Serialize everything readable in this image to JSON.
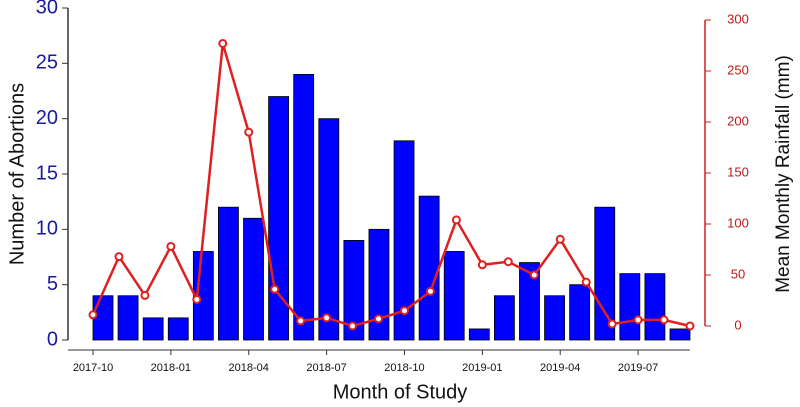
{
  "chart_data": {
    "type": "bar-line",
    "x_label": "Month of Study",
    "y_label": "Number of Abortions",
    "y2_label": "Mean Monthly Rainfall (mm)",
    "categories": [
      "2017-10",
      null,
      null,
      "2018-01",
      null,
      null,
      "2018-04",
      null,
      null,
      "2018-07",
      null,
      null,
      "2018-10",
      null,
      null,
      "2019-01",
      null,
      null,
      "2019-04",
      null,
      null,
      "2019-07",
      null,
      null
    ],
    "series": [
      {
        "type": "bar",
        "color": "#0000ff",
        "values": [
          4,
          4,
          2,
          2,
          8,
          12,
          11,
          22,
          24,
          20,
          9,
          10,
          18,
          13,
          8,
          1,
          4,
          7,
          4,
          5,
          12,
          6,
          6,
          1
        ]
      },
      {
        "type": "line",
        "axis": "y2",
        "color": "#e02020",
        "values": [
          11,
          68,
          30,
          78,
          26,
          277,
          190,
          36,
          5,
          8,
          0,
          7,
          15,
          34,
          104,
          60,
          63,
          50,
          85,
          43,
          2,
          6,
          6,
          0
        ]
      }
    ],
    "ylim": [
      0,
      30
    ],
    "yticks": [
      0,
      5,
      10,
      15,
      20,
      25,
      30
    ],
    "y2lim": [
      0,
      300
    ],
    "y2ticks": [
      0,
      50,
      100,
      150,
      200,
      250,
      300
    ]
  }
}
